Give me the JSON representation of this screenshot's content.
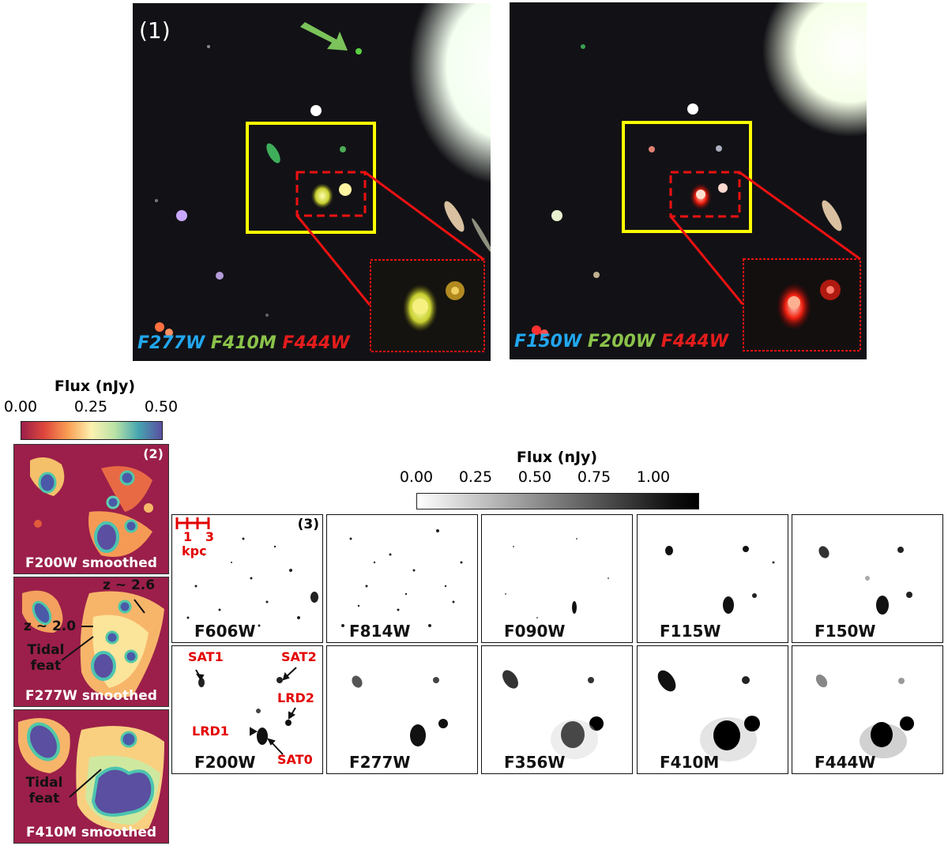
{
  "panel1": {
    "label": "(1)",
    "left_filters": [
      {
        "text": "F277W",
        "color": "#22a7f0"
      },
      {
        "text": "F410M",
        "color": "#8bc34a"
      },
      {
        "text": "F444W",
        "color": "#e31c1c"
      }
    ],
    "right_filters": [
      {
        "text": "F150W",
        "color": "#22a7f0"
      },
      {
        "text": "F200W",
        "color": "#8bc34a"
      },
      {
        "text": "F444W",
        "color": "#e31c1c"
      }
    ]
  },
  "panel2": {
    "label": "(2)",
    "colorbar": {
      "title": "Flux (nJy)",
      "ticks": [
        "0.00",
        "0.25",
        "0.50"
      ]
    },
    "panels": [
      {
        "label": "F200W smoothed"
      },
      {
        "label": "F277W smoothed",
        "annotations": {
          "z1": "z ~ 2.6",
          "z2": "z ~ 2.0",
          "tidal": "Tidal\nfeat"
        }
      },
      {
        "label": "F410M smoothed",
        "annotations": {
          "tidal": "Tidal\nfeat"
        }
      }
    ]
  },
  "panel3": {
    "label": "(3)",
    "colorbar": {
      "title": "Flux (nJy)",
      "ticks": [
        "0.00",
        "0.25",
        "0.50",
        "0.75",
        "1.00"
      ]
    },
    "scalebar": {
      "ticks": "1   3",
      "unit": "kpc"
    },
    "top_row": [
      "F606W",
      "F814W",
      "F090W",
      "F115W",
      "F150W"
    ],
    "bottom_row": [
      "F200W",
      "F277W",
      "F356W",
      "F410M",
      "F444W"
    ],
    "annotations": {
      "sat1": "SAT1",
      "sat2": "SAT2",
      "lrd2": "LRD2",
      "lrd1": "LRD1",
      "sat0": "SAT0"
    }
  }
}
